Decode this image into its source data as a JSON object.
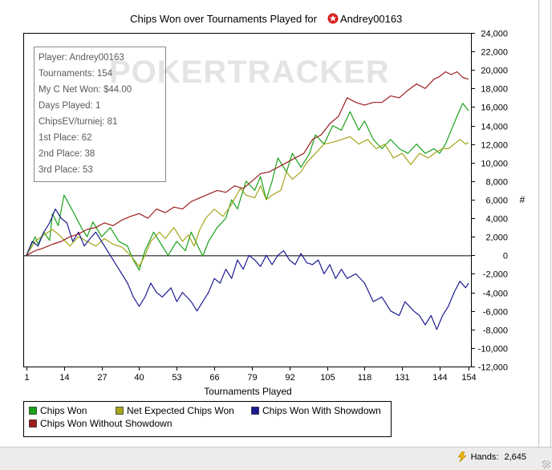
{
  "window": {
    "status_hands_label": "Hands:",
    "status_hands_value": "2,645"
  },
  "info_box": {
    "watermark": "POKERTRACKER",
    "lines": [
      "Player: Andrey00163",
      "Tournaments: 154",
      "My C Net Won: $44.00",
      "Days Played: 1",
      "ChipsEV/turniej: 81",
      "1st Place: 62",
      "2nd Place: 38",
      "3rd Place: 53"
    ]
  },
  "chart_data": {
    "type": "line",
    "title_prefix": "Chips Won over Tournaments Played for",
    "title_player": "Andrey00163",
    "xlabel": "Tournaments Played",
    "ylabel": "#",
    "xlim": [
      1,
      154
    ],
    "ylim": [
      -12000,
      24000
    ],
    "x_ticks": [
      1,
      14,
      27,
      40,
      53,
      66,
      79,
      92,
      105,
      118,
      131,
      144,
      154
    ],
    "y_ticks": [
      24000,
      22000,
      20000,
      18000,
      16000,
      14000,
      12000,
      10000,
      8000,
      6000,
      4000,
      2000,
      0,
      -2000,
      -4000,
      -6000,
      -8000,
      -10000,
      -12000
    ],
    "y_tick_labels": [
      "24,000",
      "22,000",
      "20,000",
      "18,000",
      "16,000",
      "14,000",
      "12,000",
      "10,000",
      "8,000",
      "6,000",
      "4,000",
      "2,000",
      "0",
      "-2,000",
      "-4,000",
      "-6,000",
      "-8,000",
      "-10,000",
      "-12,000"
    ],
    "grid": false,
    "legend_position": "bottom",
    "series": [
      {
        "name": "Chips Won",
        "color": "#1aa11a",
        "points": [
          [
            1,
            0
          ],
          [
            4,
            2000
          ],
          [
            5,
            1200
          ],
          [
            7,
            2500
          ],
          [
            9,
            1600
          ],
          [
            10,
            4500
          ],
          [
            12,
            3200
          ],
          [
            14,
            6500
          ],
          [
            17,
            4800
          ],
          [
            20,
            3000
          ],
          [
            22,
            2000
          ],
          [
            24,
            3600
          ],
          [
            27,
            2000
          ],
          [
            30,
            3000
          ],
          [
            33,
            1500
          ],
          [
            36,
            1000
          ],
          [
            38,
            -500
          ],
          [
            40,
            -1600
          ],
          [
            42,
            500
          ],
          [
            45,
            2500
          ],
          [
            47,
            1500
          ],
          [
            50,
            0
          ],
          [
            53,
            1500
          ],
          [
            56,
            500
          ],
          [
            58,
            2500
          ],
          [
            62,
            -100
          ],
          [
            64,
            1500
          ],
          [
            67,
            3000
          ],
          [
            70,
            4000
          ],
          [
            72,
            6000
          ],
          [
            74,
            5000
          ],
          [
            77,
            8000
          ],
          [
            80,
            7000
          ],
          [
            82,
            8500
          ],
          [
            84,
            6000
          ],
          [
            86,
            8000
          ],
          [
            88,
            10500
          ],
          [
            91,
            9000
          ],
          [
            93,
            11000
          ],
          [
            96,
            9500
          ],
          [
            99,
            11000
          ],
          [
            101,
            13000
          ],
          [
            104,
            12000
          ],
          [
            107,
            14000
          ],
          [
            110,
            13500
          ],
          [
            113,
            15500
          ],
          [
            116,
            13500
          ],
          [
            118,
            14500
          ],
          [
            121,
            12500
          ],
          [
            124,
            11500
          ],
          [
            127,
            12500
          ],
          [
            130,
            11500
          ],
          [
            133,
            11000
          ],
          [
            136,
            12000
          ],
          [
            139,
            11000
          ],
          [
            142,
            11500
          ],
          [
            144,
            11000
          ],
          [
            146,
            12000
          ],
          [
            148,
            13500
          ],
          [
            150,
            15000
          ],
          [
            152,
            16400
          ],
          [
            154,
            15600
          ]
        ]
      },
      {
        "name": "Net Expected Chips Won",
        "color": "#a5a51c",
        "points": [
          [
            1,
            0
          ],
          [
            4,
            1500
          ],
          [
            7,
            2200
          ],
          [
            10,
            2800
          ],
          [
            13,
            2000
          ],
          [
            16,
            1000
          ],
          [
            19,
            2000
          ],
          [
            22,
            1500
          ],
          [
            25,
            1000
          ],
          [
            28,
            1800
          ],
          [
            31,
            1200
          ],
          [
            34,
            900
          ],
          [
            37,
            0
          ],
          [
            40,
            -1200
          ],
          [
            42,
            0
          ],
          [
            44,
            1500
          ],
          [
            47,
            2500
          ],
          [
            49,
            1800
          ],
          [
            52,
            3000
          ],
          [
            55,
            1500
          ],
          [
            57,
            2200
          ],
          [
            59,
            1000
          ],
          [
            61,
            2800
          ],
          [
            63,
            4000
          ],
          [
            66,
            5000
          ],
          [
            69,
            4200
          ],
          [
            72,
            5500
          ],
          [
            75,
            7200
          ],
          [
            77,
            6500
          ],
          [
            80,
            6200
          ],
          [
            82,
            7500
          ],
          [
            84,
            6000
          ],
          [
            86,
            6500
          ],
          [
            89,
            7000
          ],
          [
            91,
            9000
          ],
          [
            93,
            8200
          ],
          [
            96,
            9000
          ],
          [
            98,
            10000
          ],
          [
            101,
            11000
          ],
          [
            104,
            12000
          ],
          [
            107,
            12200
          ],
          [
            110,
            12500
          ],
          [
            113,
            12800
          ],
          [
            116,
            12000
          ],
          [
            119,
            12500
          ],
          [
            122,
            11500
          ],
          [
            125,
            12000
          ],
          [
            128,
            10500
          ],
          [
            131,
            11000
          ],
          [
            134,
            9800
          ],
          [
            137,
            11000
          ],
          [
            140,
            10500
          ],
          [
            143,
            11200
          ],
          [
            145,
            11500
          ],
          [
            147,
            11500
          ],
          [
            149,
            12000
          ],
          [
            151,
            12500
          ],
          [
            153,
            12000
          ],
          [
            154,
            12200
          ]
        ]
      },
      {
        "name": "Chips Won With Showdown",
        "color": "#1c1c91",
        "points": [
          [
            1,
            0
          ],
          [
            3,
            1500
          ],
          [
            5,
            1000
          ],
          [
            7,
            2500
          ],
          [
            9,
            3500
          ],
          [
            11,
            5000
          ],
          [
            13,
            4000
          ],
          [
            15,
            3500
          ],
          [
            17,
            1500
          ],
          [
            19,
            2500
          ],
          [
            21,
            1000
          ],
          [
            23,
            1800
          ],
          [
            25,
            2500
          ],
          [
            27,
            1500
          ],
          [
            30,
            0
          ],
          [
            33,
            -1500
          ],
          [
            36,
            -3000
          ],
          [
            38,
            -4500
          ],
          [
            40,
            -5500
          ],
          [
            42,
            -4500
          ],
          [
            44,
            -3000
          ],
          [
            46,
            -4000
          ],
          [
            48,
            -4500
          ],
          [
            51,
            -3500
          ],
          [
            53,
            -5000
          ],
          [
            55,
            -4000
          ],
          [
            58,
            -5000
          ],
          [
            60,
            -6000
          ],
          [
            62,
            -5000
          ],
          [
            64,
            -4000
          ],
          [
            66,
            -2500
          ],
          [
            68,
            -3000
          ],
          [
            70,
            -1500
          ],
          [
            72,
            -2500
          ],
          [
            74,
            -500
          ],
          [
            76,
            -1500
          ],
          [
            78,
            0
          ],
          [
            80,
            -500
          ],
          [
            82,
            -1200
          ],
          [
            84,
            0
          ],
          [
            86,
            -1000
          ],
          [
            88,
            0
          ],
          [
            90,
            500
          ],
          [
            92,
            -500
          ],
          [
            94,
            -1000
          ],
          [
            96,
            200
          ],
          [
            98,
            -800
          ],
          [
            100,
            -1000
          ],
          [
            102,
            -500
          ],
          [
            104,
            -2000
          ],
          [
            106,
            -1000
          ],
          [
            108,
            -2500
          ],
          [
            110,
            -1500
          ],
          [
            112,
            -2500
          ],
          [
            115,
            -2000
          ],
          [
            118,
            -3000
          ],
          [
            121,
            -5000
          ],
          [
            124,
            -4500
          ],
          [
            127,
            -6000
          ],
          [
            130,
            -6500
          ],
          [
            132,
            -5000
          ],
          [
            135,
            -6000
          ],
          [
            137,
            -6500
          ],
          [
            139,
            -7500
          ],
          [
            141,
            -6500
          ],
          [
            143,
            -8000
          ],
          [
            145,
            -6500
          ],
          [
            147,
            -5500
          ],
          [
            149,
            -4000
          ],
          [
            151,
            -2800
          ],
          [
            153,
            -3500
          ],
          [
            154,
            -3000
          ]
        ]
      },
      {
        "name": "Chips Won Without Showdown",
        "color": "#9c1c1c",
        "points": [
          [
            1,
            0
          ],
          [
            4,
            500
          ],
          [
            7,
            800
          ],
          [
            10,
            1200
          ],
          [
            13,
            1500
          ],
          [
            16,
            2000
          ],
          [
            19,
            2300
          ],
          [
            22,
            2800
          ],
          [
            25,
            3000
          ],
          [
            28,
            3500
          ],
          [
            31,
            3200
          ],
          [
            34,
            3800
          ],
          [
            37,
            4200
          ],
          [
            40,
            4500
          ],
          [
            43,
            4000
          ],
          [
            46,
            5000
          ],
          [
            49,
            4600
          ],
          [
            52,
            5200
          ],
          [
            55,
            5000
          ],
          [
            58,
            5800
          ],
          [
            61,
            6200
          ],
          [
            64,
            6600
          ],
          [
            67,
            7000
          ],
          [
            70,
            6800
          ],
          [
            73,
            7500
          ],
          [
            76,
            7200
          ],
          [
            79,
            8000
          ],
          [
            82,
            8800
          ],
          [
            85,
            9000
          ],
          [
            88,
            9500
          ],
          [
            91,
            10000
          ],
          [
            94,
            10500
          ],
          [
            97,
            11000
          ],
          [
            100,
            12500
          ],
          [
            103,
            13000
          ],
          [
            106,
            14200
          ],
          [
            109,
            15000
          ],
          [
            112,
            17000
          ],
          [
            115,
            16500
          ],
          [
            118,
            16200
          ],
          [
            121,
            16500
          ],
          [
            124,
            16500
          ],
          [
            127,
            17200
          ],
          [
            130,
            17000
          ],
          [
            133,
            17800
          ],
          [
            136,
            18500
          ],
          [
            139,
            18000
          ],
          [
            142,
            19000
          ],
          [
            144,
            19300
          ],
          [
            146,
            19800
          ],
          [
            148,
            19500
          ],
          [
            150,
            19800
          ],
          [
            152,
            19200
          ],
          [
            154,
            19000
          ]
        ]
      }
    ]
  }
}
